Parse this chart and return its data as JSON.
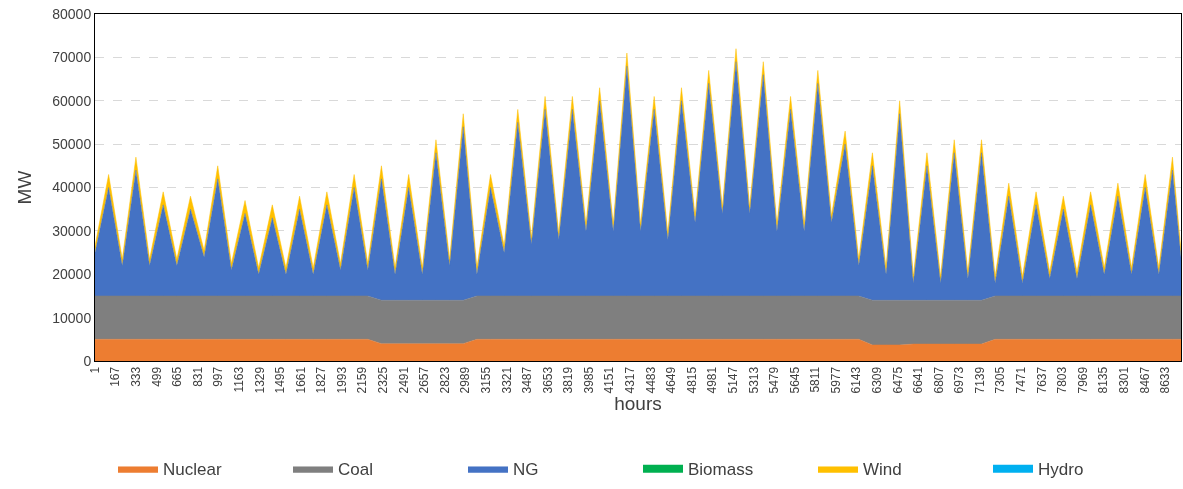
{
  "chart_data": {
    "type": "area",
    "stacked": true,
    "xlabel": "hours",
    "ylabel": "MW",
    "x": [
      1,
      111,
      221,
      331,
      441,
      551,
      661,
      771,
      881,
      991,
      1101,
      1211,
      1321,
      1431,
      1541,
      1651,
      1761,
      1871,
      1981,
      2091,
      2201,
      2311,
      2421,
      2531,
      2641,
      2751,
      2861,
      2971,
      3081,
      3191,
      3301,
      3411,
      3521,
      3631,
      3741,
      3851,
      3961,
      4071,
      4181,
      4291,
      4401,
      4511,
      4621,
      4731,
      4841,
      4951,
      5061,
      5171,
      5281,
      5391,
      5501,
      5611,
      5721,
      5831,
      5941,
      6051,
      6161,
      6271,
      6381,
      6491,
      6601,
      6711,
      6821,
      6931,
      7041,
      7151,
      7261,
      7371,
      7481,
      7591,
      7701,
      7811,
      7921,
      8031,
      8141,
      8251,
      8361,
      8471,
      8581,
      8691,
      8760
    ],
    "xlim": [
      1,
      8760
    ],
    "xticks": [
      1,
      167,
      333,
      499,
      665,
      831,
      997,
      1163,
      1329,
      1495,
      1661,
      1827,
      1993,
      2159,
      2325,
      2491,
      2657,
      2823,
      2989,
      3155,
      3321,
      3487,
      3653,
      3819,
      3985,
      4151,
      4317,
      4483,
      4649,
      4815,
      4981,
      5147,
      5313,
      5479,
      5645,
      5811,
      5977,
      6143,
      6309,
      6475,
      6641,
      6807,
      6973,
      7139,
      7305,
      7471,
      7637,
      7803,
      7969,
      8135,
      8301,
      8467,
      8633
    ],
    "ylim": [
      0,
      80000
    ],
    "yticks": [
      0,
      10000,
      20000,
      30000,
      40000,
      50000,
      60000,
      70000,
      80000
    ],
    "grid": "y",
    "legend": "bottom",
    "series": [
      {
        "name": "Nuclear",
        "color": "#ed7d31",
        "values": [
          5000,
          5000,
          5000,
          5000,
          5000,
          5000,
          5000,
          5000,
          5000,
          5000,
          5000,
          5000,
          5000,
          5000,
          5000,
          5000,
          5000,
          5000,
          5000,
          5000,
          5000,
          4000,
          4000,
          4000,
          4000,
          4000,
          4000,
          4000,
          5000,
          5000,
          5000,
          5000,
          5000,
          5000,
          5000,
          5000,
          5000,
          5000,
          5000,
          5000,
          5000,
          5000,
          5000,
          5000,
          5000,
          5000,
          5000,
          5000,
          5000,
          5000,
          5000,
          5000,
          5000,
          5000,
          5000,
          5000,
          5000,
          3700,
          3700,
          3700,
          3900,
          3900,
          3900,
          3900,
          3900,
          3900,
          5000,
          5000,
          5000,
          5000,
          5000,
          5000,
          5000,
          5000,
          5000,
          5000,
          5000,
          5000,
          5000,
          5000,
          5000
        ]
      },
      {
        "name": "Coal",
        "color": "#7f7f7f",
        "values": [
          10000,
          10000,
          10000,
          10000,
          10000,
          10000,
          10000,
          10000,
          10000,
          10000,
          10000,
          10000,
          10000,
          10000,
          10000,
          10000,
          10000,
          10000,
          10000,
          10000,
          10000,
          10000,
          10000,
          10000,
          10000,
          10000,
          10000,
          10000,
          10000,
          10000,
          10000,
          10000,
          10000,
          10000,
          10000,
          10000,
          10000,
          10000,
          10000,
          10000,
          10000,
          10000,
          10000,
          10000,
          10000,
          10000,
          10000,
          10000,
          10000,
          10000,
          10000,
          10000,
          10000,
          10000,
          10000,
          10000,
          10000,
          10300,
          10300,
          10300,
          10100,
          10100,
          10100,
          10100,
          10100,
          10100,
          10000,
          10000,
          10000,
          10000,
          10000,
          10000,
          10000,
          10000,
          10000,
          10000,
          10000,
          10000,
          10000,
          10000,
          10000
        ]
      },
      {
        "name": "NG",
        "color": "#4472c4",
        "values": [
          10000,
          25000,
          7000,
          29000,
          7000,
          21000,
          7000,
          20000,
          9000,
          27000,
          6000,
          19000,
          5000,
          18000,
          5000,
          20000,
          5000,
          21000,
          6000,
          25000,
          6000,
          28000,
          6000,
          26000,
          6000,
          34000,
          8000,
          40000,
          5000,
          25000,
          10000,
          40000,
          12000,
          43000,
          13000,
          43000,
          15000,
          45000,
          15000,
          53000,
          15000,
          43000,
          13000,
          45000,
          17000,
          49000,
          19000,
          54000,
          19000,
          51000,
          15000,
          43000,
          15000,
          49000,
          17000,
          35000,
          7000,
          31000,
          6000,
          43000,
          4000,
          31000,
          4000,
          34000,
          5000,
          34000,
          3000,
          23000,
          3000,
          21000,
          4000,
          20000,
          4000,
          21000,
          5000,
          23000,
          5000,
          25000,
          5000,
          29000,
          9000
        ]
      },
      {
        "name": "Biomass",
        "color": "#00b050",
        "values": [
          null,
          null,
          null,
          null,
          null,
          null,
          null,
          null,
          null,
          null,
          null,
          null,
          null,
          null,
          null,
          null,
          null,
          null,
          null,
          null,
          null,
          null,
          null,
          null,
          null,
          null,
          null,
          null,
          null,
          null,
          null,
          null,
          null,
          null,
          null,
          null,
          null,
          null,
          null,
          null,
          null,
          null,
          null,
          null,
          null,
          null,
          null,
          null,
          null,
          null,
          null,
          null,
          null,
          null,
          null,
          null,
          null,
          null,
          null,
          null,
          null,
          null,
          null,
          null,
          null,
          null,
          null,
          null,
          null,
          null,
          null,
          null,
          null,
          null,
          null,
          null,
          null,
          null,
          null,
          null,
          null
        ]
      },
      {
        "name": "Wind",
        "color": "#ffc000",
        "values": [
          1500,
          3000,
          1500,
          3000,
          1500,
          3000,
          1500,
          3000,
          1500,
          3000,
          1500,
          3000,
          1500,
          3000,
          1500,
          3000,
          1500,
          3000,
          1500,
          3000,
          1500,
          3000,
          1500,
          3000,
          1500,
          3000,
          1500,
          3000,
          1500,
          3000,
          1500,
          3000,
          1500,
          3000,
          1500,
          3000,
          1500,
          3000,
          1500,
          3000,
          1500,
          3000,
          1500,
          3000,
          1500,
          3000,
          1500,
          3000,
          1500,
          3000,
          1500,
          3000,
          1500,
          3000,
          1500,
          3000,
          1500,
          3000,
          1500,
          3000,
          1500,
          3000,
          1500,
          3000,
          1500,
          3000,
          1500,
          3000,
          1500,
          3000,
          1500,
          3000,
          1500,
          3000,
          1500,
          3000,
          1500,
          3000,
          1500,
          3000,
          1500
        ]
      },
      {
        "name": "Hydro",
        "color": "#00b0f0",
        "values": [
          null,
          null,
          null,
          null,
          null,
          null,
          null,
          null,
          null,
          null,
          null,
          null,
          null,
          null,
          null,
          null,
          null,
          null,
          null,
          null,
          null,
          null,
          null,
          null,
          null,
          null,
          null,
          null,
          null,
          null,
          null,
          null,
          null,
          null,
          null,
          null,
          null,
          null,
          null,
          null,
          null,
          null,
          null,
          null,
          null,
          null,
          null,
          null,
          null,
          null,
          null,
          null,
          null,
          null,
          null,
          null,
          null,
          null,
          null,
          null,
          null,
          null,
          null,
          null,
          null,
          null,
          null,
          null,
          null,
          null,
          null,
          null,
          null,
          null,
          null,
          null,
          null,
          null,
          null,
          null,
          null
        ]
      }
    ]
  }
}
